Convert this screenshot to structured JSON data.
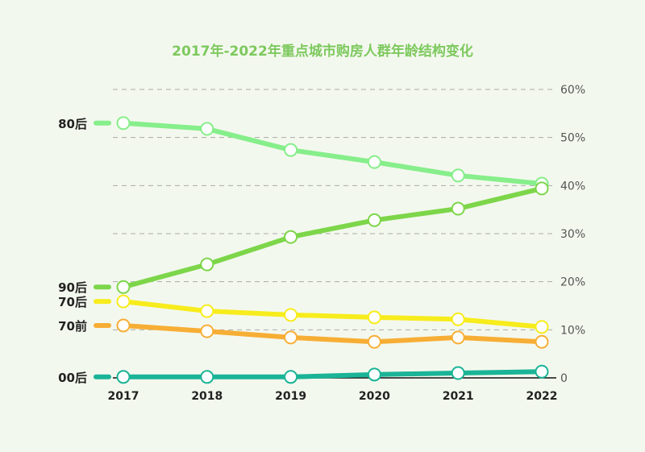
{
  "chart_data": {
    "type": "line",
    "title": "2017年-2022年重点城市购房人群年龄结构变化",
    "categories": [
      "2017",
      "2018",
      "2019",
      "2020",
      "2021",
      "2022"
    ],
    "ylim": [
      0,
      60
    ],
    "yticks": [
      "0",
      "10%",
      "20%",
      "30%",
      "40%",
      "50%",
      "60%"
    ],
    "y_axis_position": "right",
    "grid": "horizontal dashed",
    "series": [
      {
        "name": "80后",
        "color": "#86ee8a",
        "values": [
          53.0,
          51.8,
          47.4,
          44.9,
          42.1,
          40.4
        ]
      },
      {
        "name": "90后",
        "color": "#7dd64a",
        "values": [
          18.9,
          23.6,
          29.3,
          32.8,
          35.2,
          39.4
        ]
      },
      {
        "name": "70后",
        "color": "#f7ec1c",
        "values": [
          15.9,
          13.9,
          13.1,
          12.6,
          12.2,
          10.6
        ]
      },
      {
        "name": "70前",
        "color": "#f7ae35",
        "values": [
          10.9,
          9.7,
          8.4,
          7.5,
          8.4,
          7.5
        ]
      },
      {
        "name": "00后",
        "color": "#1ab497",
        "values": [
          0.2,
          0.2,
          0.2,
          0.7,
          1.0,
          1.3
        ]
      }
    ]
  }
}
